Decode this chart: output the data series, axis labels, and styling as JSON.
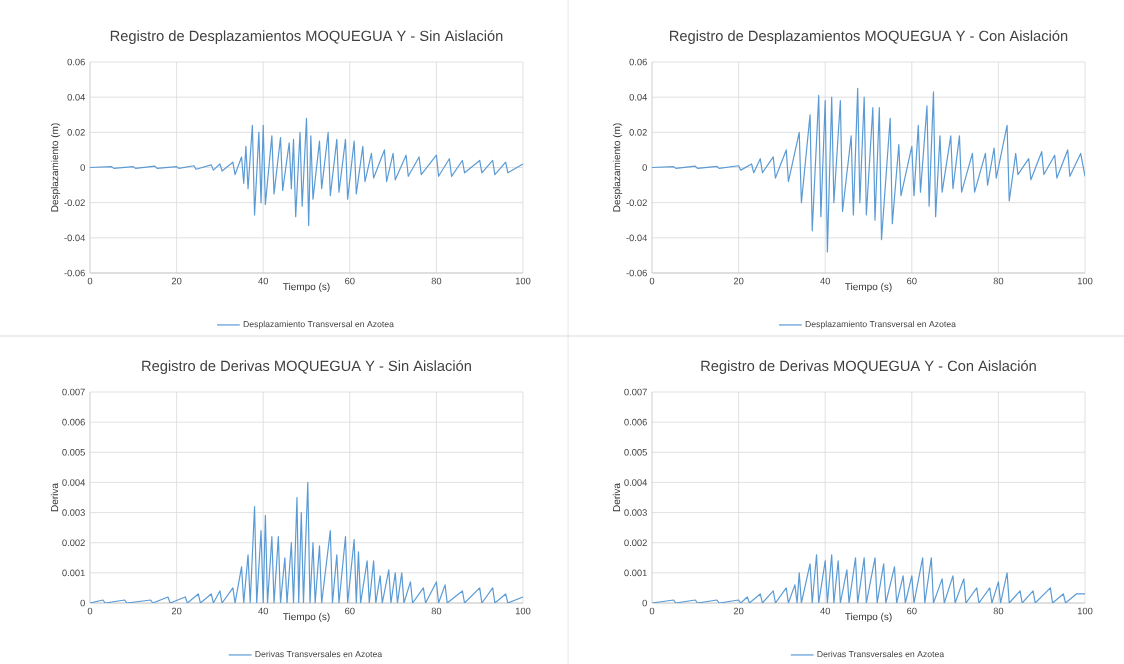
{
  "chart_data": [
    {
      "type": "line",
      "title": "Registro de Desplazamientos MOQUEGUA Y - Sin Aislación",
      "xlabel": "Tiempo (s)",
      "ylabel": "Desplazamiento (m)",
      "xlim": [
        0,
        100
      ],
      "ylim": [
        -0.06,
        0.06
      ],
      "xticks": [
        0,
        20,
        40,
        60,
        80,
        100
      ],
      "yticks": [
        -0.06,
        -0.04,
        -0.02,
        0,
        0.02,
        0.04,
        0.06
      ],
      "grid": true,
      "legend": "bottom",
      "series": [
        {
          "name": "Desplazamiento Transversal en Azotea",
          "color": "#5b9bd5",
          "x": [
            0,
            5,
            5.5,
            10,
            10.5,
            15,
            15.5,
            20,
            20.5,
            24,
            24.5,
            28,
            28.5,
            30,
            30.5,
            33,
            33.5,
            35,
            35.5,
            36,
            36.5,
            37.5,
            38,
            39,
            39.5,
            40,
            40.5,
            42,
            42.5,
            44,
            44.5,
            46,
            46.5,
            47,
            47.5,
            48.5,
            49,
            50,
            50.5,
            51,
            51.5,
            53,
            53.5,
            55,
            55.5,
            57,
            57.5,
            59,
            59.5,
            61,
            61.5,
            63,
            63.5,
            65,
            65.5,
            68,
            68.5,
            70,
            70.5,
            73,
            73.5,
            76,
            76.5,
            80,
            80.5,
            83,
            83.5,
            86,
            86.5,
            90,
            90.5,
            93,
            93.5,
            96,
            96.5,
            100
          ],
          "values": [
            0,
            0.0005,
            -0.0005,
            0.0005,
            -0.0005,
            0.0008,
            -0.0005,
            0.0005,
            -0.0005,
            0.001,
            -0.001,
            0.0015,
            -0.0015,
            0.002,
            -0.002,
            0.003,
            -0.004,
            0.006,
            -0.009,
            0.012,
            -0.012,
            0.024,
            -0.027,
            0.02,
            -0.02,
            0.024,
            -0.021,
            0.018,
            -0.015,
            0.017,
            -0.013,
            0.014,
            -0.012,
            0.016,
            -0.028,
            0.02,
            -0.022,
            0.028,
            -0.033,
            0.018,
            -0.018,
            0.015,
            -0.012,
            0.02,
            -0.016,
            0.016,
            -0.014,
            0.016,
            -0.018,
            0.015,
            -0.015,
            0.012,
            -0.008,
            0.008,
            -0.006,
            0.01,
            -0.008,
            0.008,
            -0.007,
            0.007,
            -0.005,
            0.006,
            -0.004,
            0.007,
            -0.005,
            0.005,
            -0.005,
            0.004,
            -0.003,
            0.004,
            -0.003,
            0.004,
            -0.004,
            0.003,
            -0.003,
            0.002
          ]
        }
      ]
    },
    {
      "type": "line",
      "title": "Registro de Desplazamientos MOQUEGUA Y - Con Aislación",
      "xlabel": "Tiempo (s)",
      "ylabel": "Desplazamiento (m)",
      "xlim": [
        0,
        100
      ],
      "ylim": [
        -0.06,
        0.06
      ],
      "xticks": [
        0,
        20,
        40,
        60,
        80,
        100
      ],
      "yticks": [
        -0.06,
        -0.04,
        -0.02,
        0,
        0.02,
        0.04,
        0.06
      ],
      "grid": true,
      "legend": "bottom",
      "series": [
        {
          "name": "Desplazamiento Transversal en Azotea",
          "color": "#5b9bd5",
          "x": [
            0,
            5,
            5.5,
            10,
            10.5,
            15,
            15.5,
            20,
            20.5,
            23,
            23.5,
            25,
            25.5,
            28,
            28.5,
            31,
            31.5,
            34,
            34.5,
            36.5,
            37,
            38.5,
            39,
            40,
            40.5,
            41.5,
            42,
            43.5,
            44,
            46,
            46.5,
            47.5,
            48,
            49,
            49.5,
            51,
            51.5,
            52.5,
            53,
            55,
            55.5,
            57,
            57.5,
            60,
            60.5,
            61.5,
            62,
            63.5,
            64,
            65,
            65.5,
            66.5,
            67,
            69,
            69.5,
            71,
            71.5,
            74,
            74.5,
            77,
            77.5,
            79,
            79.5,
            82,
            82.5,
            84,
            84.5,
            87,
            87.5,
            90,
            90.5,
            93,
            93.5,
            96,
            96.5,
            99,
            100
          ],
          "values": [
            0,
            0.0005,
            -0.0005,
            0.0008,
            -0.0005,
            0.0006,
            -0.0005,
            0.001,
            -0.0015,
            0.002,
            -0.003,
            0.005,
            -0.003,
            0.006,
            -0.006,
            0.01,
            -0.008,
            0.02,
            -0.02,
            0.03,
            -0.036,
            0.041,
            -0.028,
            0.038,
            -0.048,
            0.04,
            -0.02,
            0.038,
            -0.025,
            0.018,
            -0.027,
            0.045,
            -0.02,
            0.04,
            -0.027,
            0.034,
            -0.03,
            0.034,
            -0.041,
            0.028,
            -0.032,
            0.013,
            -0.016,
            0.012,
            -0.016,
            0.024,
            -0.014,
            0.035,
            -0.022,
            0.043,
            -0.028,
            0.018,
            -0.014,
            0.018,
            -0.012,
            0.018,
            -0.014,
            0.008,
            -0.014,
            0.008,
            -0.01,
            0.011,
            -0.006,
            0.024,
            -0.019,
            0.008,
            -0.004,
            0.005,
            -0.007,
            0.009,
            -0.004,
            0.007,
            -0.006,
            0.01,
            -0.005,
            0.008,
            -0.005
          ]
        }
      ]
    },
    {
      "type": "line",
      "title": "Registro de Derivas MOQUEGUA Y - Sin Aislación",
      "xlabel": "Tiempo (s)",
      "ylabel": "Deriva",
      "xlim": [
        0,
        100
      ],
      "ylim": [
        0,
        0.007
      ],
      "xticks": [
        0,
        20,
        40,
        60,
        80,
        100
      ],
      "yticks": [
        0,
        0.001,
        0.002,
        0.003,
        0.004,
        0.005,
        0.006,
        0.007
      ],
      "grid": true,
      "legend": "bottom",
      "series": [
        {
          "name": "Derivas Transversales en Azotea",
          "color": "#5b9bd5",
          "x": [
            0,
            3,
            3.5,
            8,
            8.5,
            14,
            14.5,
            18,
            18.5,
            22,
            22.5,
            25,
            25.5,
            28,
            28.5,
            30,
            30.5,
            33,
            33.5,
            35,
            35.5,
            36.5,
            37,
            38,
            38.5,
            39.5,
            40,
            40.5,
            41,
            42,
            42.5,
            43.5,
            44,
            45,
            45.5,
            46.5,
            47,
            47.8,
            48.2,
            48.8,
            49.3,
            50.3,
            50.8,
            51.5,
            52,
            53,
            53.5,
            55.5,
            56,
            57,
            57.5,
            59,
            59.5,
            61,
            61.5,
            62,
            62.5,
            64,
            64.5,
            65.5,
            66,
            67,
            67.5,
            69,
            69.5,
            70.5,
            71,
            72,
            72.5,
            74,
            74.5,
            77,
            77.5,
            80,
            80.5,
            82,
            82.5,
            86,
            86.5,
            90,
            90.5,
            93,
            93.5,
            96,
            96.5,
            100
          ],
          "values": [
            0,
            0.0001,
            0,
            0.0001,
            0,
            0.0001,
            0,
            0.0002,
            0,
            0.0002,
            0,
            0.0003,
            0,
            0.0003,
            0,
            0.0004,
            0,
            0.0005,
            0,
            0.0012,
            0,
            0.0016,
            0,
            0.0032,
            0,
            0.0024,
            0,
            0.0029,
            0,
            0.0022,
            0,
            0.0022,
            0,
            0.0015,
            0,
            0.002,
            0,
            0.0035,
            0,
            0.003,
            0,
            0.004,
            0,
            0.002,
            0,
            0.0019,
            0,
            0.0024,
            0,
            0.0016,
            0,
            0.0022,
            0,
            0.0021,
            0,
            0.0017,
            0,
            0.0014,
            0,
            0.0014,
            0,
            0.0009,
            0,
            0.0011,
            0,
            0.001,
            0,
            0.001,
            0,
            0.0007,
            0,
            0.0005,
            0,
            0.0007,
            0,
            0.0006,
            0,
            0.0004,
            0,
            0.0005,
            0,
            0.0005,
            0,
            0.0003,
            0,
            0.0002
          ]
        }
      ]
    },
    {
      "type": "line",
      "title": "Registro de Derivas MOQUEGUA Y - Con Aislación",
      "xlabel": "Tiempo (s)",
      "ylabel": "Deriva",
      "xlim": [
        0,
        100
      ],
      "ylim": [
        0,
        0.007
      ],
      "xticks": [
        0,
        20,
        40,
        60,
        80,
        100
      ],
      "yticks": [
        0,
        0.001,
        0.002,
        0.003,
        0.004,
        0.005,
        0.006,
        0.007
      ],
      "grid": true,
      "legend": "bottom",
      "series": [
        {
          "name": "Derivas Transversales en Azotea",
          "color": "#5b9bd5",
          "x": [
            0,
            5,
            5.5,
            10,
            10.5,
            15,
            15.5,
            20,
            20.5,
            22,
            22.5,
            25,
            25.5,
            28,
            28.5,
            31,
            31.5,
            33,
            33.5,
            34,
            34.5,
            36.5,
            37,
            38,
            38.5,
            40,
            40.5,
            41.5,
            42,
            43,
            43.5,
            45,
            45.5,
            47,
            47.5,
            49,
            49.5,
            51.5,
            52,
            53.5,
            54,
            56,
            56.5,
            58,
            58.5,
            60,
            60.5,
            62.5,
            63,
            64.5,
            65,
            67,
            67.5,
            69.5,
            70,
            72,
            72.5,
            75,
            75.5,
            78,
            78.5,
            80,
            80.5,
            82,
            82.5,
            85,
            85.5,
            88,
            88.5,
            92,
            92.5,
            95,
            95.5,
            98,
            100
          ],
          "values": [
            0,
            0.0001,
            0,
            0.0001,
            0,
            0.0001,
            0,
            0.0001,
            0,
            0.0002,
            0,
            0.0003,
            0,
            0.0004,
            0,
            0.0005,
            0,
            0.0006,
            0,
            0.001,
            0,
            0.0013,
            0,
            0.0016,
            0,
            0.0014,
            0,
            0.0016,
            0,
            0.0014,
            0,
            0.0011,
            0,
            0.0015,
            0,
            0.0015,
            0,
            0.0015,
            0,
            0.0013,
            0,
            0.0012,
            0,
            0.0009,
            0,
            0.0009,
            0,
            0.0015,
            0,
            0.0015,
            0,
            0.0008,
            0,
            0.0009,
            0,
            0.0008,
            0,
            0.0005,
            0,
            0.0005,
            0,
            0.0007,
            0,
            0.001,
            0,
            0.0004,
            0,
            0.0004,
            0,
            0.0005,
            0,
            0.0003,
            0,
            0.0003,
            0.0003
          ]
        }
      ]
    }
  ]
}
